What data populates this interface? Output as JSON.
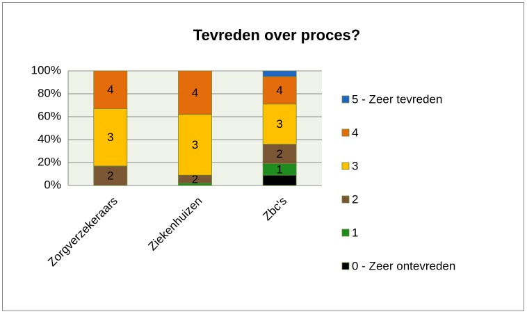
{
  "chart_data": {
    "type": "stacked_bar_100",
    "title": "Tevreden over proces?",
    "categories": [
      "Zorgverzekeraars",
      "Ziekenhuizen",
      "Zbc's"
    ],
    "series": [
      {
        "name": "0 - Zeer ontevreden",
        "color": "#000000",
        "values": [
          0,
          0,
          9
        ]
      },
      {
        "name": "1",
        "color": "#1e8c1e",
        "values": [
          0,
          2,
          10
        ]
      },
      {
        "name": "2",
        "color": "#7b5634",
        "values": [
          17,
          7,
          17
        ]
      },
      {
        "name": "3",
        "color": "#ffc000",
        "values": [
          50,
          53,
          35
        ]
      },
      {
        "name": "4",
        "color": "#e46c0a",
        "values": [
          33,
          38,
          24
        ]
      },
      {
        "name": "5 - Zeer tevreden",
        "color": "#1f66c2",
        "values": [
          0,
          0,
          5
        ]
      }
    ],
    "ylim": [
      0,
      100
    ],
    "yticks": [
      {
        "value": 0,
        "label": "0%"
      },
      {
        "value": 20,
        "label": "20%"
      },
      {
        "value": 40,
        "label": "40%"
      },
      {
        "value": 60,
        "label": "60%"
      },
      {
        "value": 80,
        "label": "80%"
      },
      {
        "value": 100,
        "label": "100%"
      }
    ],
    "grid": true,
    "legend": "right"
  }
}
